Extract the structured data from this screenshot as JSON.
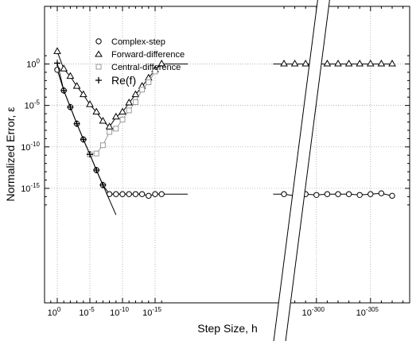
{
  "chart_data": {
    "type": "line",
    "title": "",
    "xlabel": "Step Size, h",
    "ylabel": "Normalized Error, ε",
    "x_scale": "log (broken axis)",
    "y_scale": "log",
    "grid": true,
    "legend_position": "top-left",
    "x_tick_labels": [
      {
        "base": "10",
        "exp": "0"
      },
      {
        "base": "10",
        "exp": "-5"
      },
      {
        "base": "10",
        "exp": "-10"
      },
      {
        "base": "10",
        "exp": "-15"
      },
      {
        "base": "10",
        "exp": "-300"
      },
      {
        "base": "10",
        "exp": "-305"
      }
    ],
    "y_tick_labels": [
      {
        "base": "10",
        "exp": "0"
      },
      {
        "base": "10",
        "exp": "-5"
      },
      {
        "base": "10",
        "exp": "-10"
      },
      {
        "base": "10",
        "exp": "-15"
      }
    ],
    "series": [
      {
        "name": "Complex-step",
        "color": "#000000",
        "marker": "circle",
        "log10_h": [
          0,
          -1,
          -2,
          -3,
          -4,
          -5,
          -6,
          -7,
          -8,
          -9,
          -10,
          -11,
          -12,
          -13,
          -14,
          -15,
          -16,
          -297,
          -298,
          -299,
          -300,
          -301,
          -302,
          -303,
          -304,
          -305,
          -306,
          -307
        ],
        "log10_error": [
          -0.7,
          -3.2,
          -5.2,
          -7.2,
          -9.1,
          -10.9,
          -12.8,
          -14.6,
          -15.7,
          -15.7,
          -15.7,
          -15.7,
          -15.7,
          -15.7,
          -15.9,
          -15.7,
          -15.7,
          -15.7,
          -15.9,
          -15.7,
          -15.8,
          -15.7,
          -15.7,
          -15.7,
          -15.8,
          -15.7,
          -15.6,
          -15.9
        ]
      },
      {
        "name": "Forward-difference",
        "color": "#000000",
        "marker": "triangle",
        "log10_h": [
          0,
          -1,
          -2,
          -3,
          -4,
          -5,
          -6,
          -7,
          -8,
          -9,
          -10,
          -11,
          -12,
          -13,
          -14,
          -15,
          -16,
          -297,
          -298,
          -299,
          -300,
          -301,
          -302,
          -303,
          -304,
          -305,
          -306,
          -307
        ],
        "log10_error": [
          1.5,
          -0.6,
          -1.5,
          -2.7,
          -3.7,
          -4.9,
          -5.8,
          -6.9,
          -7.6,
          -6.4,
          -5.8,
          -4.7,
          -3.7,
          -2.7,
          -1.7,
          -0.7,
          0,
          0,
          0,
          0,
          0,
          0,
          0,
          0,
          0,
          0,
          0,
          0
        ]
      },
      {
        "name": "Central-difference",
        "color": "#9a9a9a",
        "marker": "square",
        "log10_h": [
          -5,
          -6,
          -7,
          -8,
          -9,
          -10,
          -11,
          -12,
          -13,
          -14,
          -15
        ],
        "log10_error": [
          -10.9,
          -10.8,
          -9.8,
          -8.2,
          -7.8,
          -6.7,
          -5.6,
          -4.6,
          -3.1,
          -2.2,
          -0.9
        ]
      },
      {
        "name": "Re(f)",
        "color": "#000000",
        "marker": "plus",
        "log10_h": [
          0,
          -1,
          -2,
          -3,
          -4,
          -5,
          -6,
          -7
        ],
        "log10_error": [
          0.1,
          -3.2,
          -5.2,
          -7.2,
          -9.1,
          -10.9,
          -12.8,
          -14.6
        ]
      }
    ]
  }
}
